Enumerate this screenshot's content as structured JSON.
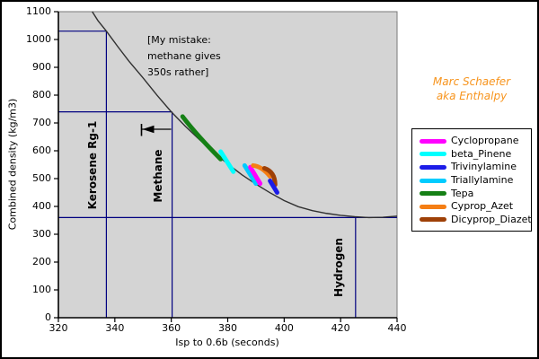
{
  "chart_data": {
    "type": "line",
    "xlabel": "Isp to 0.6b (seconds)",
    "ylabel": "Combined density (kg/m3)",
    "xlim": [
      320,
      440
    ],
    "ylim": [
      0,
      1100
    ],
    "x_ticks": [
      320,
      340,
      360,
      380,
      400,
      420,
      440
    ],
    "y_ticks": [
      0,
      100,
      200,
      300,
      400,
      500,
      600,
      700,
      800,
      900,
      1000,
      1100
    ],
    "grid": false,
    "plot_bg": "#D4D4D4",
    "ref_color": "#000080",
    "tradeoff_curve": {
      "color": "#303030",
      "points": [
        [
          332,
          1100
        ],
        [
          334,
          1068
        ],
        [
          337,
          1030
        ],
        [
          341,
          975
        ],
        [
          345,
          922
        ],
        [
          350,
          862
        ],
        [
          355,
          799
        ],
        [
          360,
          740
        ],
        [
          365,
          688
        ],
        [
          370,
          640
        ],
        [
          375,
          594
        ],
        [
          380,
          553
        ],
        [
          385,
          514
        ],
        [
          390,
          480
        ],
        [
          395,
          449
        ],
        [
          400,
          421
        ],
        [
          405,
          399
        ],
        [
          410,
          385
        ],
        [
          415,
          375
        ],
        [
          420,
          368
        ],
        [
          425,
          363
        ],
        [
          430,
          360
        ],
        [
          435,
          361
        ],
        [
          440,
          365
        ]
      ]
    },
    "reference_lines": [
      {
        "name": "Kerosene Rg-1",
        "isp": 337,
        "density": 1030,
        "horizontal_full_width": false
      },
      {
        "name": "Methane",
        "isp": 360.3,
        "density": 740,
        "horizontal_full_width": false
      },
      {
        "name": "Hydrogen",
        "isp": 425.3,
        "density": 360,
        "horizontal_full_width": true
      }
    ],
    "series": [
      {
        "name": "Tepa",
        "color": "#158015",
        "points": [
          [
            364,
            723
          ],
          [
            370,
            650
          ],
          [
            377.5,
            570
          ]
        ]
      },
      {
        "name": "beta_Pinene",
        "color": "#00FFFF",
        "points": [
          [
            377.5,
            597
          ],
          [
            382,
            525
          ]
        ]
      },
      {
        "name": "Triallylamine",
        "color": "#00CCFF",
        "points": [
          [
            386,
            547
          ],
          [
            390,
            482
          ]
        ]
      },
      {
        "name": "Cyclopropane",
        "color": "#FF00FF",
        "points": [
          [
            388,
            541
          ],
          [
            391.5,
            482
          ]
        ]
      },
      {
        "name": "Cyprop_Azet",
        "color": "#F57E14",
        "points": [
          [
            389,
            547
          ],
          [
            392,
            536
          ],
          [
            395,
            508
          ]
        ]
      },
      {
        "name": "Dicyprop_Diazet",
        "color": "#9E4007",
        "points": [
          [
            393,
            537
          ],
          [
            395.8,
            516
          ],
          [
            396.8,
            478
          ]
        ]
      },
      {
        "name": "Trivinylamine",
        "color": "#1C1CE8",
        "points": [
          [
            395,
            492
          ],
          [
            397.5,
            450
          ]
        ]
      }
    ],
    "legend_position": "right"
  },
  "legend": {
    "items": [
      {
        "label": "Cyclopropane",
        "color": "#FF00FF"
      },
      {
        "label": "beta_Pinene",
        "color": "#00FFFF"
      },
      {
        "label": "Trivinylamine",
        "color": "#1C1CE8"
      },
      {
        "label": "Triallylamine",
        "color": "#00CCFF"
      },
      {
        "label": "Tepa",
        "color": "#158015"
      },
      {
        "label": "Cyprop_Azet",
        "color": "#F57E14"
      },
      {
        "label": "Dicyprop_Diazet",
        "color": "#9E4007"
      }
    ]
  },
  "annotations": {
    "mistake_note": "[My mistake:\nmethane gives\n350s rather]",
    "credit": "Marc Schaefer\naka Enthalpy",
    "credit_color": "#F7941D"
  }
}
